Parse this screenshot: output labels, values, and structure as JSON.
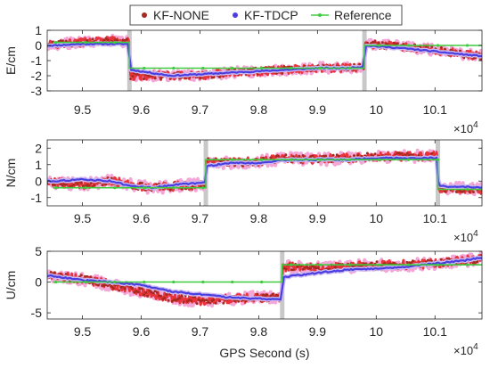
{
  "chart_data": [
    {
      "type": "line",
      "ylabel": "E/cm",
      "xlim": [
        94400,
        101800
      ],
      "ylim": [
        -3,
        1
      ],
      "yticks": [
        -3,
        -2,
        -1,
        0,
        1
      ],
      "xticks": [
        95000,
        96000,
        97000,
        98000,
        99000,
        100000,
        101000
      ],
      "xtick_labels": [
        "9.5",
        "9.6",
        "9.7",
        "9.8",
        "9.9",
        "10",
        "10.1"
      ],
      "x_exponent_label": "×10^4",
      "shaded_x": [
        95800,
        99800
      ],
      "legend": {
        "placement": "top-center",
        "entries": [
          "KF-NONE",
          "KF-TDCP",
          "Reference"
        ]
      },
      "series": [
        {
          "name": "KF-NONE",
          "x": [
            94500,
            95000,
            95500,
            95790,
            95810,
            96500,
            97000,
            97500,
            98000,
            98500,
            99000,
            99500,
            99790,
            99810,
            100500,
            101000,
            101500,
            101800
          ],
          "values": [
            0.1,
            0.2,
            0.3,
            0.2,
            -2.0,
            -2.0,
            -2.0,
            -1.8,
            -1.7,
            -1.6,
            -1.5,
            -1.5,
            -1.4,
            0.1,
            -0.1,
            -0.3,
            -0.6,
            -0.7
          ]
        },
        {
          "name": "KF-TDCP",
          "x": [
            94500,
            95000,
            95500,
            95790,
            95810,
            96500,
            97000,
            97500,
            98000,
            98500,
            99000,
            99500,
            99790,
            99810,
            100500,
            101000,
            101500,
            101800
          ],
          "values": [
            0.0,
            0.1,
            0.1,
            0.1,
            -1.6,
            -2.0,
            -1.9,
            -1.8,
            -1.7,
            -1.6,
            -1.5,
            -1.5,
            -1.4,
            0.0,
            -0.2,
            -0.4,
            -0.6,
            -0.7
          ]
        },
        {
          "name": "Reference",
          "x": [
            94500,
            95800,
            95800,
            99800,
            99800,
            101800
          ],
          "values": [
            0.2,
            0.2,
            -1.5,
            -1.5,
            0.0,
            0.0
          ]
        }
      ]
    },
    {
      "type": "line",
      "ylabel": "N/cm",
      "xlim": [
        94400,
        101800
      ],
      "ylim": [
        -1.5,
        2.5
      ],
      "yticks": [
        -1,
        0,
        1,
        2
      ],
      "xticks": [
        95000,
        96000,
        97000,
        98000,
        99000,
        100000,
        101000
      ],
      "xtick_labels": [
        "9.5",
        "9.6",
        "9.7",
        "9.8",
        "9.9",
        "10",
        "10.1"
      ],
      "x_exponent_label": "×10^4",
      "shaded_x": [
        97100,
        101050
      ],
      "series": [
        {
          "name": "KF-NONE",
          "x": [
            94500,
            95000,
            95500,
            95800,
            96200,
            96600,
            97090,
            97110,
            97500,
            98000,
            98500,
            99000,
            99500,
            100000,
            100500,
            101040,
            101060,
            101800
          ],
          "values": [
            -0.1,
            -0.2,
            0.0,
            -0.2,
            -0.4,
            -0.3,
            -0.2,
            1.2,
            1.1,
            1.2,
            1.4,
            1.3,
            1.4,
            1.5,
            1.5,
            1.5,
            -0.4,
            -0.5
          ]
        },
        {
          "name": "KF-TDCP",
          "x": [
            94500,
            95000,
            95500,
            95800,
            96200,
            96600,
            97090,
            97110,
            97500,
            98000,
            98500,
            99000,
            99500,
            100000,
            100500,
            101040,
            101060,
            101800
          ],
          "values": [
            0.0,
            0.1,
            0.0,
            -0.3,
            -0.4,
            -0.2,
            -0.1,
            0.9,
            1.1,
            1.1,
            1.3,
            1.3,
            1.3,
            1.4,
            1.4,
            1.4,
            -0.3,
            -0.4
          ]
        },
        {
          "name": "Reference",
          "x": [
            94500,
            97100,
            97100,
            101050,
            101050,
            101800
          ],
          "values": [
            -0.4,
            -0.4,
            1.3,
            1.3,
            -0.5,
            -0.5
          ]
        }
      ]
    },
    {
      "type": "line",
      "ylabel": "U/cm",
      "xlabel": "GPS Second (s)",
      "xlim": [
        94400,
        101800
      ],
      "ylim": [
        -6,
        5
      ],
      "yticks": [
        -5,
        0,
        5
      ],
      "xticks": [
        95000,
        96000,
        97000,
        98000,
        99000,
        100000,
        101000
      ],
      "xtick_labels": [
        "9.5",
        "9.6",
        "9.7",
        "9.8",
        "9.9",
        "10",
        "10.1"
      ],
      "x_exponent_label": "×10^4",
      "shaded_x": [
        98400
      ],
      "series": [
        {
          "name": "KF-NONE",
          "x": [
            94500,
            95000,
            95500,
            96000,
            96500,
            97000,
            97500,
            98000,
            98390,
            98410,
            99000,
            99500,
            100000,
            100500,
            101000,
            101500,
            101800
          ],
          "values": [
            1.0,
            0.5,
            -0.5,
            -1.5,
            -2.5,
            -3.0,
            -2.8,
            -2.5,
            -2.5,
            2.5,
            2.3,
            2.5,
            2.7,
            2.8,
            3.0,
            3.5,
            3.8
          ]
        },
        {
          "name": "KF-TDCP",
          "x": [
            94500,
            95000,
            95500,
            96000,
            96500,
            97000,
            97500,
            98000,
            98390,
            98410,
            99000,
            99500,
            100000,
            100500,
            101000,
            101500,
            101800
          ],
          "values": [
            1.0,
            0.3,
            0.0,
            -0.5,
            -1.5,
            -2.0,
            -2.5,
            -2.7,
            -2.8,
            0.8,
            1.5,
            2.0,
            2.2,
            2.5,
            3.0,
            3.5,
            4.0
          ]
        },
        {
          "name": "Reference",
          "x": [
            94500,
            98400,
            98400,
            101800
          ],
          "values": [
            0.0,
            0.0,
            2.8,
            2.8
          ]
        }
      ]
    }
  ],
  "colors": {
    "KF-NONE": "#a62a1f",
    "KF-NONE-band": "#e8333b",
    "KF-NONE-halo": "#f4a6d7",
    "KF-TDCP": "#4b3ee0",
    "KF-TDCP-halo": "#c9b8f2",
    "Reference": "#3ecb3e",
    "shade": "#c8c8c8"
  }
}
